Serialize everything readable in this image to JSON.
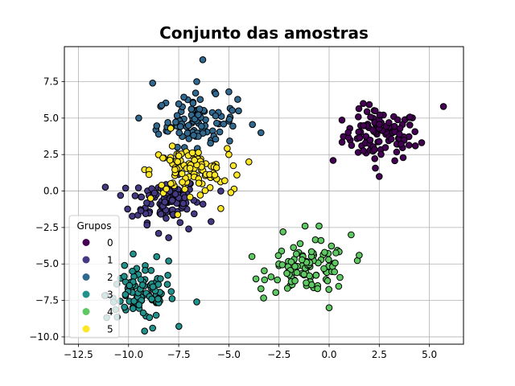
{
  "chart_data": {
    "type": "scatter",
    "title": "Conjunto das amostras",
    "xlabel": "",
    "ylabel": "",
    "xlim": [
      -13.2,
      6.7
    ],
    "ylim": [
      -10.5,
      9.9
    ],
    "xticks": [
      -12.5,
      -10.0,
      -7.5,
      -5.0,
      -2.5,
      0.0,
      2.5,
      5.0
    ],
    "xtick_labels": [
      "−12.5",
      "−10.0",
      "−7.5",
      "−5.0",
      "−2.5",
      "0.0",
      "2.5",
      "5.0"
    ],
    "yticks": [
      -10.0,
      -7.5,
      -5.0,
      -2.5,
      0.0,
      2.5,
      5.0,
      7.5
    ],
    "ytick_labels": [
      "−10.0",
      "−7.5",
      "−5.0",
      "−2.5",
      "0.0",
      "2.5",
      "5.0",
      "7.5"
    ],
    "grid": true,
    "legend": {
      "title": "Grupos",
      "placement": "lower-left",
      "entries": [
        "0",
        "1",
        "2",
        "3",
        "4",
        "5"
      ]
    },
    "groups": [
      {
        "name": "0",
        "color": "#440154",
        "center": [
          2.6,
          3.8
        ],
        "spread": [
          0.95,
          0.85
        ],
        "n": 100,
        "extras": [
          [
            5.7,
            5.8
          ],
          [
            0.2,
            2.1
          ],
          [
            2.5,
            1.0
          ],
          [
            4.3,
            3.1
          ],
          [
            1.7,
            6.0
          ],
          [
            2.3,
            5.5
          ]
        ]
      },
      {
        "name": "1",
        "color": "#443983",
        "center": [
          -8.2,
          -0.6
        ],
        "spread": [
          0.85,
          0.75
        ],
        "n": 100,
        "extras": [
          [
            -10.4,
            -0.3
          ],
          [
            -8.0,
            -3.2
          ],
          [
            -7.0,
            -2.6
          ],
          [
            -5.4,
            0.0
          ],
          [
            -8.5,
            -2.9
          ]
        ]
      },
      {
        "name": "2",
        "color": "#31688e",
        "center": [
          -6.6,
          4.8
        ],
        "spread": [
          1.0,
          0.85
        ],
        "n": 100,
        "extras": [
          [
            -6.3,
            9.0
          ],
          [
            -8.8,
            7.4
          ],
          [
            -6.6,
            7.5
          ],
          [
            -3.4,
            4.0
          ],
          [
            -5.0,
            6.8
          ],
          [
            -8.5,
            3.9
          ]
        ]
      },
      {
        "name": "3",
        "color": "#21918c",
        "center": [
          -9.4,
          -7.1
        ],
        "spread": [
          0.85,
          0.85
        ],
        "n": 100,
        "extras": [
          [
            -8.8,
            -9.4
          ],
          [
            -10.2,
            -5.1
          ],
          [
            -8.0,
            -4.8
          ],
          [
            -6.6,
            -7.6
          ],
          [
            -9.2,
            -9.6
          ],
          [
            -8.6,
            -4.5
          ]
        ]
      },
      {
        "name": "4",
        "color": "#5ec962",
        "center": [
          -1.0,
          -5.3
        ],
        "spread": [
          1.0,
          0.8
        ],
        "n": 100,
        "extras": [
          [
            -3.4,
            -6.7
          ],
          [
            1.1,
            -3.0
          ],
          [
            -2.3,
            -2.8
          ],
          [
            -0.5,
            -2.4
          ],
          [
            0.0,
            -8.0
          ],
          [
            -1.2,
            -2.4
          ],
          [
            1.5,
            -4.4
          ]
        ]
      },
      {
        "name": "5",
        "color": "#fde725",
        "center": [
          -7.0,
          1.4
        ],
        "spread": [
          0.95,
          0.75
        ],
        "n": 100,
        "extras": [
          [
            -5.0,
            2.5
          ],
          [
            -4.9,
            -0.1
          ],
          [
            -5.7,
            1.1
          ],
          [
            -8.9,
            -0.5
          ],
          [
            -4.6,
            1.1
          ],
          [
            -5.4,
            -1.2
          ],
          [
            -7.9,
            4.3
          ]
        ]
      }
    ]
  }
}
